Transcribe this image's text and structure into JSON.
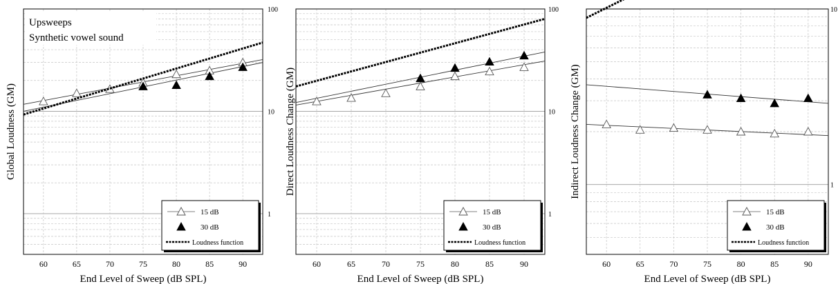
{
  "figure": {
    "xlabel": "End Level of Sweep (dB SPL)"
  },
  "chart_data": [
    {
      "type": "line",
      "ylabel": "Global Loudness (GM)",
      "yscale": "log",
      "ylim": [
        0.4,
        100
      ],
      "xlim": [
        57,
        93
      ],
      "xticks": [
        60,
        65,
        70,
        75,
        80,
        85,
        90
      ],
      "yticks": [
        1,
        10,
        100
      ],
      "grid": true,
      "annotation": [
        "Upsweeps",
        "Synthetic vowel sound"
      ],
      "legend_position": "bottom-right",
      "legend": [
        "15 dB",
        "30 dB",
        "Loudness function"
      ],
      "series": [
        {
          "name": "15 dB",
          "marker": "open-triangle",
          "x": [
            60,
            65,
            70,
            75,
            80,
            85,
            90
          ],
          "y": [
            12.5,
            15,
            16.5,
            19,
            23,
            25,
            30
          ]
        },
        {
          "name": "30 dB",
          "marker": "filled-triangle",
          "x": [
            75,
            80,
            85,
            90
          ],
          "y": [
            17.5,
            18,
            22,
            27
          ]
        },
        {
          "name": "Loudness function",
          "style": "dotted",
          "x": [
            57,
            93
          ],
          "y": [
            9.3,
            47
          ]
        }
      ],
      "fit_lines": [
        {
          "series": "15 dB",
          "x": [
            57,
            93
          ],
          "y": [
            11.7,
            32
          ]
        },
        {
          "series": "30 dB",
          "x": [
            57,
            93
          ],
          "y": [
            10.0,
            30
          ]
        }
      ]
    },
    {
      "type": "line",
      "ylabel": "Direct Loudness Change (GM)",
      "yscale": "log",
      "ylim": [
        0.4,
        100
      ],
      "xlim": [
        57,
        93
      ],
      "xticks": [
        60,
        65,
        70,
        75,
        80,
        85,
        90
      ],
      "yticks": [
        1,
        10,
        100
      ],
      "grid": true,
      "legend_position": "bottom-right",
      "legend": [
        "15 dB",
        "30 dB",
        "Loudness function"
      ],
      "series": [
        {
          "name": "15 dB",
          "marker": "open-triangle",
          "x": [
            60,
            65,
            70,
            75,
            80,
            85,
            90
          ],
          "y": [
            12.5,
            13.5,
            15,
            17.5,
            22,
            24.5,
            27
          ]
        },
        {
          "name": "30 dB",
          "marker": "filled-triangle",
          "x": [
            75,
            80,
            85,
            90
          ],
          "y": [
            21,
            26.5,
            30.5,
            35
          ]
        },
        {
          "name": "Loudness function",
          "style": "dotted",
          "x": [
            57,
            93
          ],
          "y": [
            17.5,
            80
          ]
        }
      ],
      "fit_lines": [
        {
          "series": "15 dB",
          "x": [
            57,
            93
          ],
          "y": [
            11.5,
            31
          ]
        },
        {
          "series": "30 dB",
          "x": [
            57,
            93
          ],
          "y": [
            12.2,
            38
          ]
        }
      ]
    },
    {
      "type": "line",
      "ylabel": "Indirect Loudness Change (GM)",
      "yscale": "log",
      "ylim": [
        0.4,
        10
      ],
      "xlim": [
        57,
        93
      ],
      "xticks": [
        60,
        65,
        70,
        75,
        80,
        85,
        90
      ],
      "yticks": [
        1,
        10
      ],
      "yticks_extra": [
        10
      ],
      "grid": true,
      "legend_position": "bottom-right",
      "legend": [
        "15 dB",
        "30 dB",
        "Loudness function"
      ],
      "series": [
        {
          "name": "15 dB",
          "marker": "open-triangle",
          "x": [
            60,
            65,
            70,
            75,
            80,
            85,
            90
          ],
          "y": [
            2.2,
            2.05,
            2.1,
            2.05,
            2.0,
            1.95,
            2.0
          ]
        },
        {
          "name": "30 dB",
          "marker": "filled-triangle",
          "x": [
            75,
            80,
            85,
            90
          ],
          "y": [
            3.25,
            3.1,
            2.9,
            3.1
          ]
        },
        {
          "name": "Loudness function",
          "style": "dotted",
          "x": [
            57,
            93
          ],
          "y": [
            8.9,
            43
          ]
        }
      ],
      "fit_lines": [
        {
          "series": "15 dB",
          "x": [
            57,
            93
          ],
          "y": [
            2.2,
            1.9
          ]
        },
        {
          "series": "30 dB",
          "x": [
            57,
            93
          ],
          "y": [
            3.7,
            2.9
          ]
        }
      ]
    }
  ]
}
